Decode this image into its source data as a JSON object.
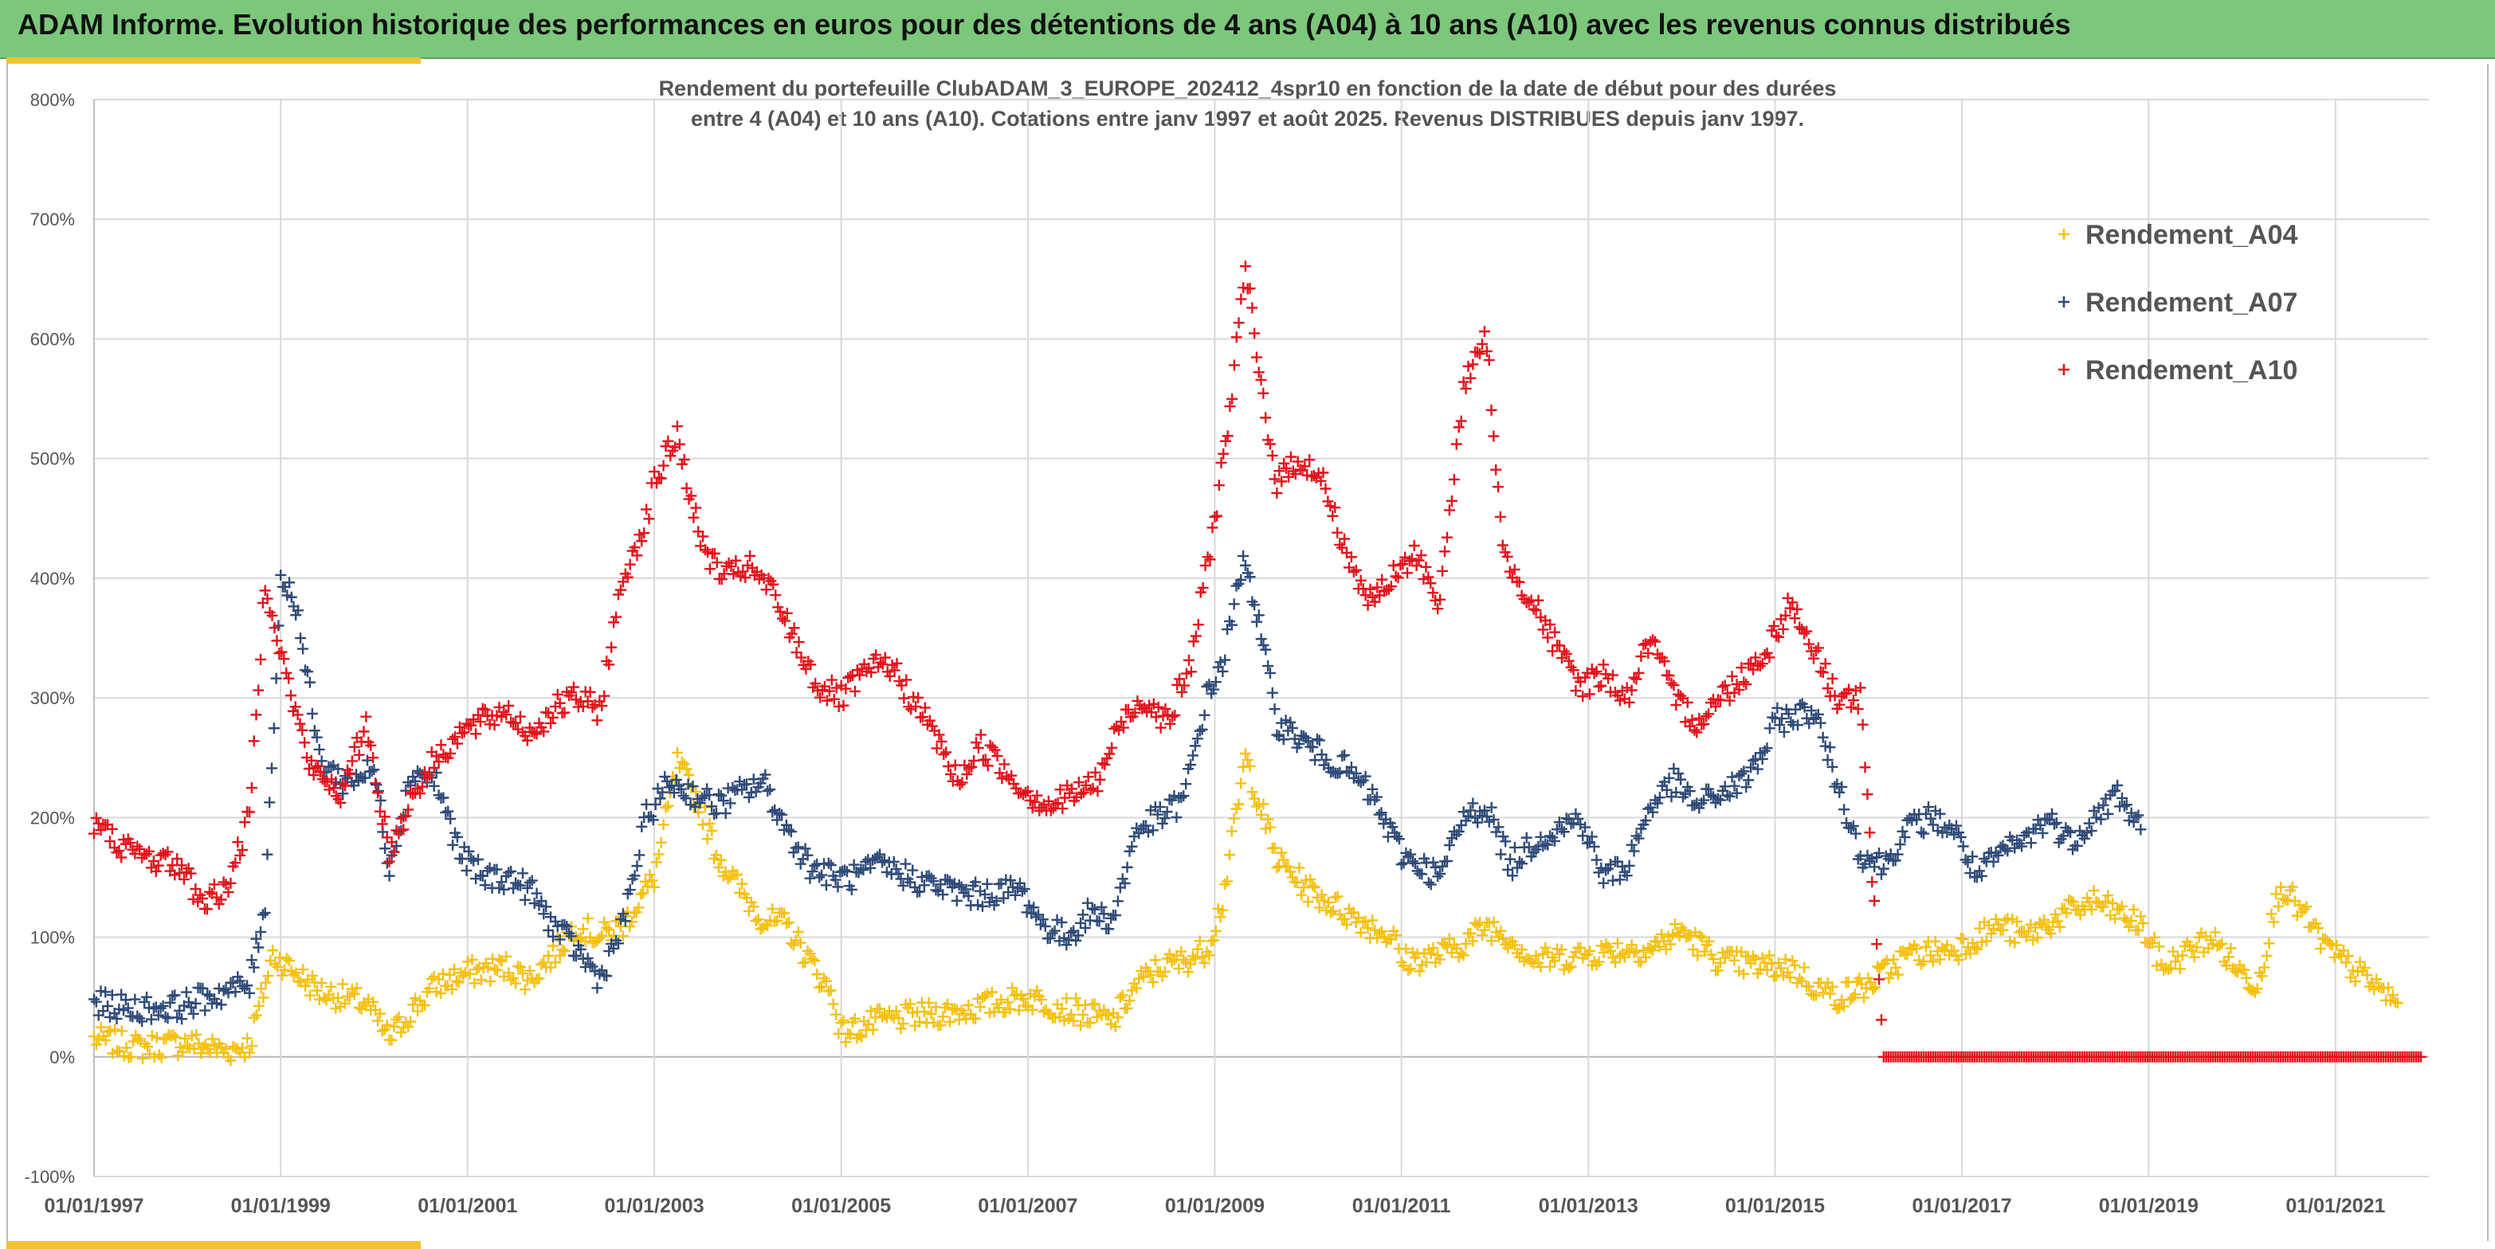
{
  "banner": {
    "title": "ADAM Informe. Evolution historique des performances en euros pour des détentions de 4 ans (A04) à 10 ans (A10) avec les revenus connus distribués"
  },
  "colors": {
    "banner_bg": "#7cc77c",
    "accent": "#f2c230",
    "a04": "#f5c00f",
    "a07": "#2e4a78",
    "a10": "#e3121b"
  },
  "chart_data": {
    "type": "scatter",
    "title_lines": [
      "Rendement du portefeuille ClubADAM_3_EUROPE_202412_4spr10  en fonction de la date de début pour des durées",
      "entre 4 (A04) et 10 ans (A10). Cotations entre janv 1997 et août 2025. Revenus DISTRIBUES depuis janv 1997."
    ],
    "x_axis": {
      "type": "date",
      "range": [
        "1997-01-01",
        "2022-01-01"
      ],
      "tick_labels": [
        "01/01/1997",
        "01/01/1999",
        "01/01/2001",
        "01/01/2003",
        "01/01/2005",
        "01/01/2007",
        "01/01/2009",
        "01/01/2011",
        "01/01/2013",
        "01/01/2015",
        "01/01/2017",
        "01/01/2019",
        "01/01/2021"
      ]
    },
    "y_axis": {
      "range": [
        -100,
        800
      ],
      "unit": "%",
      "tick_labels": [
        "-100%",
        "0%",
        "100%",
        "200%",
        "300%",
        "400%",
        "500%",
        "600%",
        "700%",
        "800%"
      ]
    },
    "grid": true,
    "legend_position": "top-right",
    "marker": "+",
    "series": [
      {
        "name": "Rendement_A04",
        "color": "#f5c00f",
        "x": [
          "1997-01",
          "1997-07",
          "1998-01",
          "1998-06",
          "1998-09",
          "1998-12",
          "1999-06",
          "1999-12",
          "2000-03",
          "2000-06",
          "2000-09",
          "2001-01",
          "2001-06",
          "2001-09",
          "2001-12",
          "2002-03",
          "2002-06",
          "2002-09",
          "2003-01",
          "2003-04",
          "2003-07",
          "2003-09",
          "2003-12",
          "2004-03",
          "2004-06",
          "2004-09",
          "2004-12",
          "2005-01",
          "2005-06",
          "2005-12",
          "2006-06",
          "2006-09",
          "2007-01",
          "2007-06",
          "2007-09",
          "2007-12",
          "2008-03",
          "2008-06",
          "2008-09",
          "2008-12",
          "2009-02",
          "2009-05",
          "2009-09",
          "2010-01",
          "2010-06",
          "2010-12",
          "2011-01",
          "2011-06",
          "2011-09",
          "2011-12",
          "2012-03",
          "2012-06",
          "2012-12",
          "2013-06",
          "2013-09",
          "2014-01",
          "2014-06",
          "2014-12",
          "2015-03",
          "2015-06",
          "2015-09",
          "2016-01",
          "2016-06",
          "2016-12",
          "2017-06",
          "2017-09",
          "2018-01",
          "2018-06",
          "2018-12",
          "2019-03",
          "2019-09",
          "2020-01",
          "2020-03",
          "2020-06",
          "2020-12",
          "2021-03",
          "2021-06",
          "2021-09"
        ],
        "y": [
          15,
          8,
          12,
          5,
          10,
          85,
          55,
          45,
          15,
          40,
          60,
          70,
          75,
          65,
          85,
          110,
          100,
          110,
          150,
          245,
          210,
          170,
          140,
          115,
          110,
          80,
          50,
          20,
          30,
          35,
          40,
          45,
          50,
          40,
          35,
          30,
          60,
          75,
          80,
          90,
          130,
          250,
          165,
          140,
          120,
          100,
          80,
          85,
          95,
          110,
          100,
          80,
          85,
          90,
          90,
          105,
          80,
          75,
          75,
          60,
          50,
          60,
          85,
          90,
          110,
          100,
          115,
          130,
          110,
          75,
          100,
          70,
          60,
          145,
          90,
          75,
          60,
          45
        ]
      },
      {
        "name": "Rendement_A07",
        "color": "#2e4a78",
        "x": [
          "1997-01",
          "1997-06",
          "1997-12",
          "1998-06",
          "1998-09",
          "1998-11",
          "1999-01",
          "1999-03",
          "1999-06",
          "1999-09",
          "2000-01",
          "2000-03",
          "2000-06",
          "2000-09",
          "2000-12",
          "2001-03",
          "2001-06",
          "2001-09",
          "2001-12",
          "2002-03",
          "2002-06",
          "2002-09",
          "2002-12",
          "2003-03",
          "2003-06",
          "2003-09",
          "2003-12",
          "2004-03",
          "2004-06",
          "2004-09",
          "2004-12",
          "2005-03",
          "2005-06",
          "2005-12",
          "2006-06",
          "2006-12",
          "2007-03",
          "2007-06",
          "2007-09",
          "2007-12",
          "2008-03",
          "2008-06",
          "2008-09",
          "2008-12",
          "2009-02",
          "2009-05",
          "2009-09",
          "2010-01",
          "2010-06",
          "2010-09",
          "2011-01",
          "2011-06",
          "2011-09",
          "2011-12",
          "2012-03",
          "2012-06",
          "2012-12",
          "2013-03",
          "2013-06",
          "2013-09",
          "2013-12",
          "2014-03",
          "2014-06",
          "2014-09",
          "2014-12",
          "2015-01",
          "2015-06",
          "2015-12",
          "2016-03",
          "2016-06",
          "2016-09",
          "2016-12",
          "2017-03",
          "2017-06",
          "2017-09",
          "2017-12",
          "2018-03",
          "2018-06",
          "2018-09",
          "2018-12"
        ],
        "y": [
          45,
          40,
          42,
          55,
          60,
          130,
          400,
          380,
          250,
          230,
          240,
          160,
          240,
          230,
          170,
          150,
          150,
          140,
          110,
          90,
          65,
          110,
          200,
          230,
          220,
          210,
          220,
          230,
          190,
          160,
          150,
          150,
          160,
          145,
          135,
          140,
          110,
          100,
          120,
          115,
          190,
          200,
          215,
          300,
          330,
          420,
          280,
          260,
          240,
          220,
          170,
          150,
          200,
          210,
          160,
          180,
          200,
          150,
          160,
          210,
          230,
          210,
          220,
          230,
          260,
          280,
          290,
          170,
          160,
          190,
          200,
          190,
          150,
          170,
          180,
          200,
          180,
          200,
          220,
          190
        ]
      },
      {
        "name": "Rendement_A10",
        "color": "#e3121b",
        "x": [
          "1997-01",
          "1997-06",
          "1997-12",
          "1998-03",
          "1998-06",
          "1998-09",
          "1998-11",
          "1999-02",
          "1999-05",
          "1999-09",
          "1999-12",
          "2000-03",
          "2000-06",
          "2000-09",
          "2000-12",
          "2001-03",
          "2001-06",
          "2001-09",
          "2001-12",
          "2002-03",
          "2002-06",
          "2002-09",
          "2002-12",
          "2003-01",
          "2003-04",
          "2003-07",
          "2003-10",
          "2004-01",
          "2004-04",
          "2004-07",
          "2004-10",
          "2005-01",
          "2005-04",
          "2005-07",
          "2005-10",
          "2006-01",
          "2006-04",
          "2006-07",
          "2006-10",
          "2007-01",
          "2007-04",
          "2007-07",
          "2007-10",
          "2008-01",
          "2008-04",
          "2008-07",
          "2008-10",
          "2009-01",
          "2009-03",
          "2009-05",
          "2009-07",
          "2009-09",
          "2009-12",
          "2010-03",
          "2010-06",
          "2010-09",
          "2010-12",
          "2011-03",
          "2011-06",
          "2011-09",
          "2011-12",
          "2012-02",
          "2012-06",
          "2012-09",
          "2012-12",
          "2013-03",
          "2013-06",
          "2013-09",
          "2013-12",
          "2014-03",
          "2014-06",
          "2014-09",
          "2014-12",
          "2015-03",
          "2015-06",
          "2015-09",
          "2015-12",
          "2016-03",
          "2016-06",
          "2016-09",
          "2016-12",
          "2017-03",
          "2017-06",
          "2017-09",
          "2017-12",
          "2018-03",
          "2018-06",
          "2018-09",
          "2018-12",
          "2019-03",
          "2019-06",
          "2019-09",
          "2019-12",
          "2020-03",
          "2020-06",
          "2020-09",
          "2020-12",
          "2021-03",
          "2021-06",
          "2021-09",
          "2021-12"
        ],
        "y": [
          195,
          170,
          160,
          130,
          140,
          200,
          400,
          310,
          240,
          220,
          280,
          170,
          220,
          250,
          270,
          280,
          290,
          270,
          290,
          300,
          290,
          400,
          450,
          480,
          520,
          430,
          400,
          410,
          390,
          350,
          310,
          300,
          320,
          330,
          300,
          270,
          230,
          260,
          240,
          220,
          210,
          220,
          230,
          280,
          300,
          280,
          330,
          450,
          540,
          660,
          560,
          480,
          500,
          480,
          420,
          380,
          400,
          420,
          380,
          560,
          600,
          420,
          380,
          340,
          310,
          320,
          300,
          350,
          300,
          280,
          300,
          320,
          340,
          380,
          340,
          300,
          300,
          0,
          0,
          0,
          0,
          0,
          0,
          0,
          0,
          0,
          0,
          0,
          0,
          0,
          0,
          0,
          0,
          0,
          0,
          0,
          0,
          0,
          0,
          0,
          0
        ]
      }
    ]
  }
}
